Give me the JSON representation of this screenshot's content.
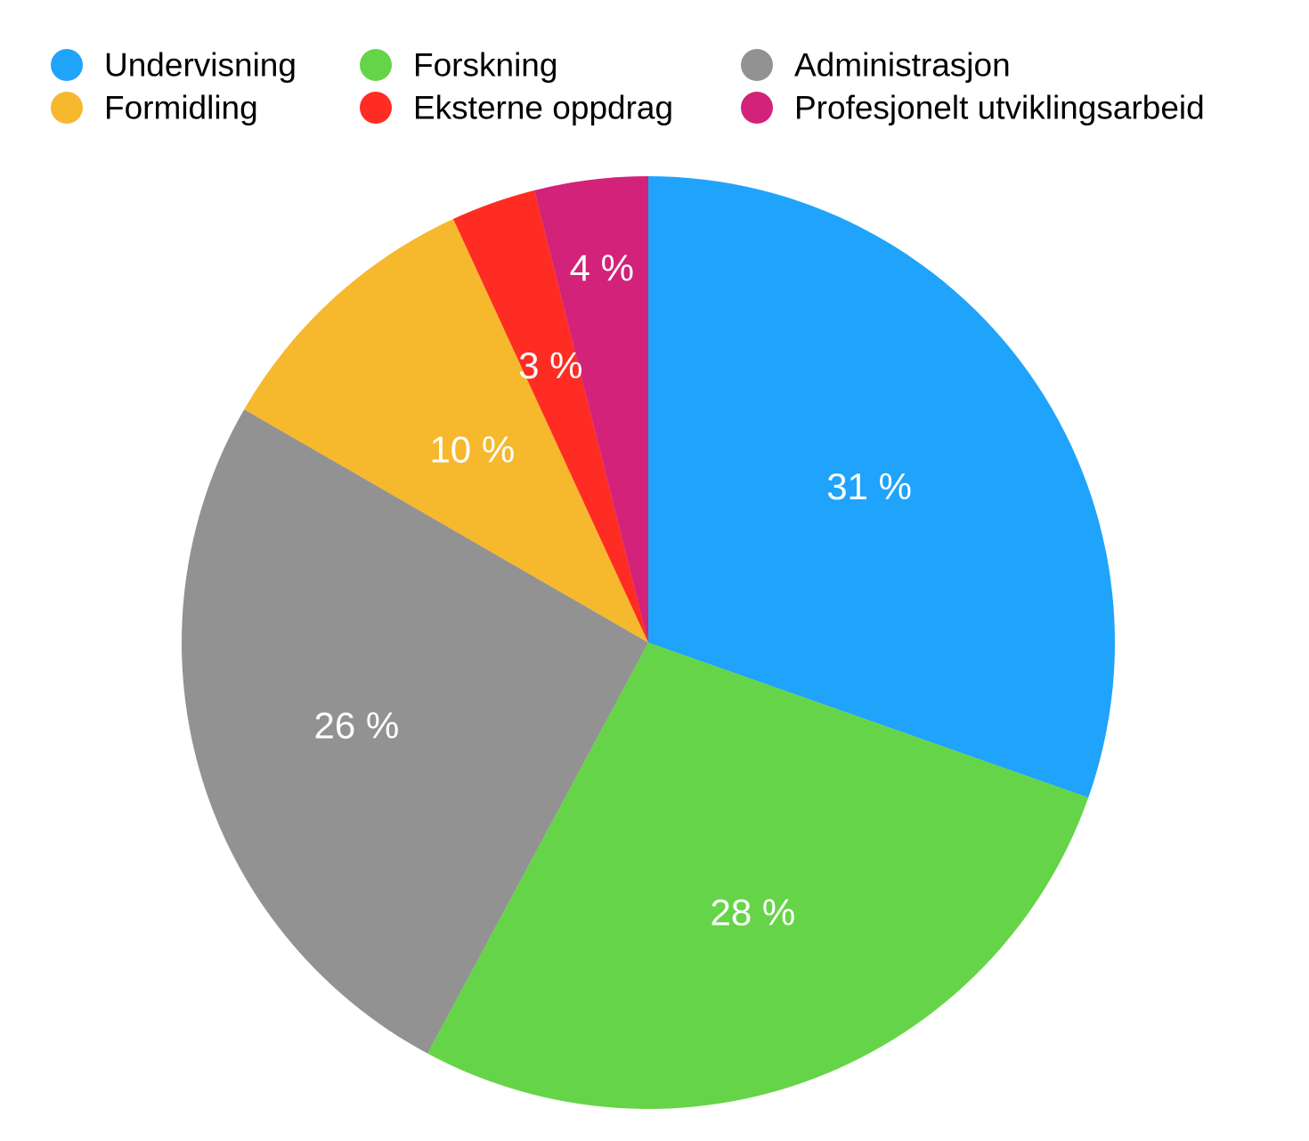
{
  "chart_data": {
    "type": "pie",
    "start_angle_deg": 0,
    "direction": "clockwise",
    "legend_placement": "top",
    "slices": [
      {
        "name": "Undervisning",
        "value": 31,
        "label": "31 %",
        "color": "#1FA3FB"
      },
      {
        "name": "Forskning",
        "value": 28,
        "label": "28 %",
        "color": "#66D448"
      },
      {
        "name": "Administrasjon",
        "value": 26,
        "label": "26 %",
        "color": "#929292"
      },
      {
        "name": "Formidling",
        "value": 10,
        "label": "10 %",
        "color": "#F6B82D"
      },
      {
        "name": "Eksterne oppdrag",
        "value": 3,
        "label": "3 %",
        "color": "#FE2C22"
      },
      {
        "name": "Profesjonelt utviklingsarbeid",
        "value": 4,
        "label": "4 %",
        "color": "#D22279"
      }
    ],
    "legend": [
      {
        "name": "Undervisning",
        "color": "#1FA3FB"
      },
      {
        "name": "Forskning",
        "color": "#66D448"
      },
      {
        "name": "Administrasjon",
        "color": "#929292"
      },
      {
        "name": "Formidling",
        "color": "#F6B82D"
      },
      {
        "name": "Eksterne oppdrag",
        "color": "#FE2C22"
      },
      {
        "name": "Profesjonelt utviklingsarbeid",
        "color": "#D22279"
      }
    ]
  }
}
